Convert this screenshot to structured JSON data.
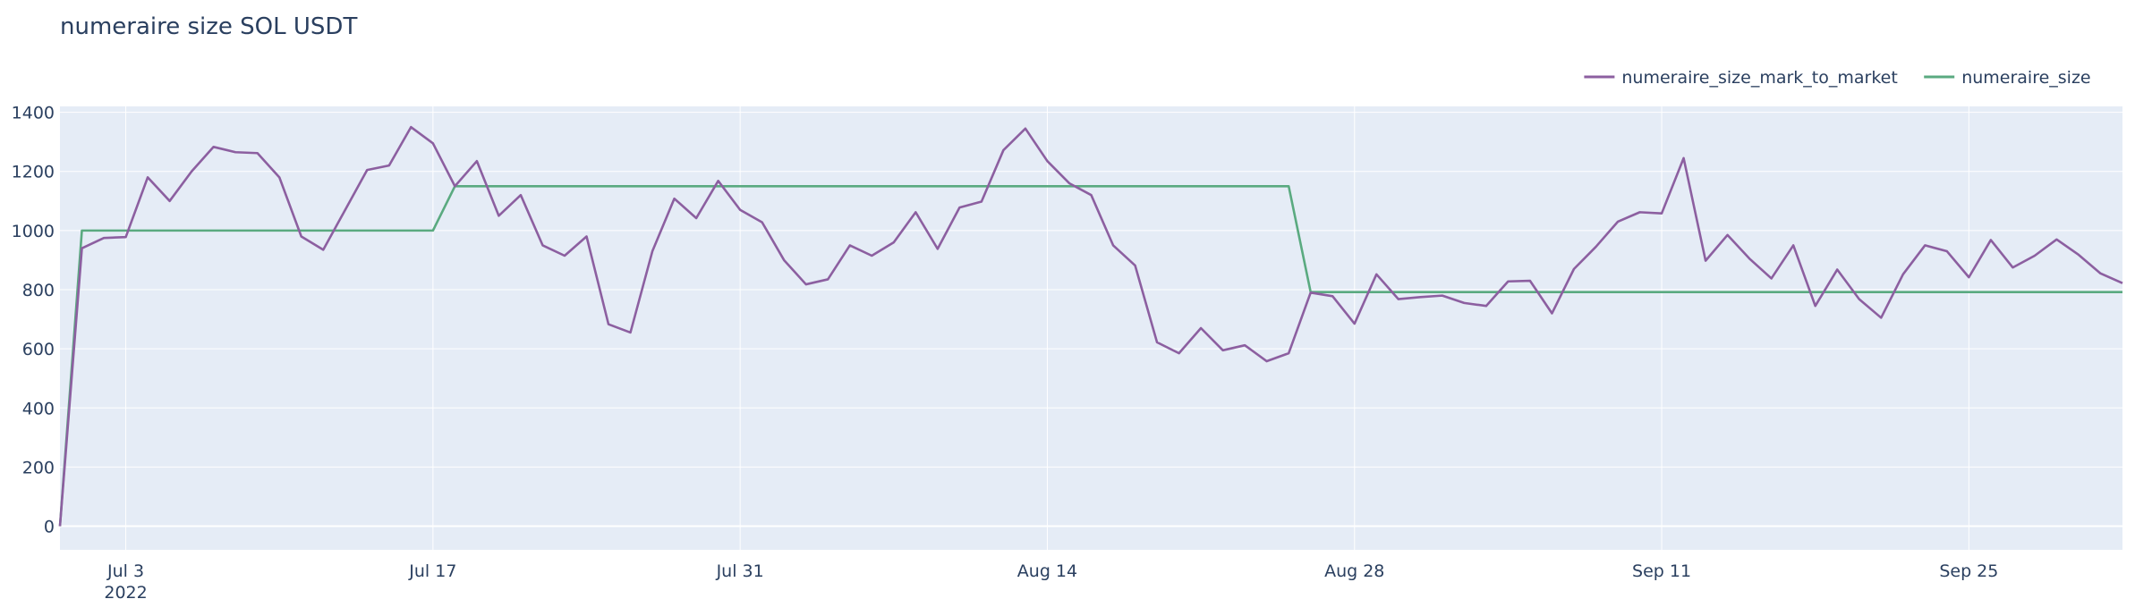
{
  "chart_data": {
    "type": "line",
    "title": "numeraire size SOL USDT",
    "xlabel": "",
    "ylabel": "",
    "x_start": "2022-06-30",
    "x_end": "2022-10-02",
    "x_ticks": [
      {
        "date": "2022-07-03",
        "label": "Jul 3",
        "sublabel": "2022"
      },
      {
        "date": "2022-07-17",
        "label": "Jul 17",
        "sublabel": ""
      },
      {
        "date": "2022-07-31",
        "label": "Jul 31",
        "sublabel": ""
      },
      {
        "date": "2022-08-14",
        "label": "Aug 14",
        "sublabel": ""
      },
      {
        "date": "2022-08-28",
        "label": "Aug 28",
        "sublabel": ""
      },
      {
        "date": "2022-09-11",
        "label": "Sep 11",
        "sublabel": ""
      },
      {
        "date": "2022-09-25",
        "label": "Sep 25",
        "sublabel": ""
      }
    ],
    "ylim": [
      -80,
      1420
    ],
    "y_ticks": [
      0,
      200,
      400,
      600,
      800,
      1000,
      1200,
      1400
    ],
    "grid": true,
    "legend_position": "top-right",
    "series": [
      {
        "name": "numeraire_size_mark_to_market",
        "color": "#8c5fa0",
        "points": [
          [
            "2022-06-30",
            0
          ],
          [
            "2022-07-01",
            940
          ],
          [
            "2022-07-02",
            975
          ],
          [
            "2022-07-03",
            978
          ],
          [
            "2022-07-04",
            1180
          ],
          [
            "2022-07-05",
            1100
          ],
          [
            "2022-07-06",
            1200
          ],
          [
            "2022-07-07",
            1283
          ],
          [
            "2022-07-08",
            1265
          ],
          [
            "2022-07-09",
            1262
          ],
          [
            "2022-07-10",
            1180
          ],
          [
            "2022-07-11",
            980
          ],
          [
            "2022-07-12",
            935
          ],
          [
            "2022-07-13",
            1070
          ],
          [
            "2022-07-14",
            1205
          ],
          [
            "2022-07-15",
            1220
          ],
          [
            "2022-07-16",
            1350
          ],
          [
            "2022-07-17",
            1295
          ],
          [
            "2022-07-18",
            1150
          ],
          [
            "2022-07-19",
            1235
          ],
          [
            "2022-07-20",
            1050
          ],
          [
            "2022-07-21",
            1120
          ],
          [
            "2022-07-22",
            950
          ],
          [
            "2022-07-23",
            915
          ],
          [
            "2022-07-24",
            980
          ],
          [
            "2022-07-25",
            683
          ],
          [
            "2022-07-26",
            655
          ],
          [
            "2022-07-27",
            930
          ],
          [
            "2022-07-28",
            1108
          ],
          [
            "2022-07-29",
            1042
          ],
          [
            "2022-07-30",
            1168
          ],
          [
            "2022-07-31",
            1070
          ],
          [
            "2022-08-01",
            1028
          ],
          [
            "2022-08-02",
            900
          ],
          [
            "2022-08-03",
            818
          ],
          [
            "2022-08-04",
            835
          ],
          [
            "2022-08-05",
            950
          ],
          [
            "2022-08-06",
            915
          ],
          [
            "2022-08-07",
            960
          ],
          [
            "2022-08-08",
            1062
          ],
          [
            "2022-08-09",
            938
          ],
          [
            "2022-08-10",
            1078
          ],
          [
            "2022-08-11",
            1098
          ],
          [
            "2022-08-12",
            1272
          ],
          [
            "2022-08-13",
            1345
          ],
          [
            "2022-08-14",
            1235
          ],
          [
            "2022-08-15",
            1160
          ],
          [
            "2022-08-16",
            1120
          ],
          [
            "2022-08-17",
            950
          ],
          [
            "2022-08-18",
            882
          ],
          [
            "2022-08-19",
            622
          ],
          [
            "2022-08-20",
            585
          ],
          [
            "2022-08-21",
            670
          ],
          [
            "2022-08-22",
            595
          ],
          [
            "2022-08-23",
            612
          ],
          [
            "2022-08-24",
            558
          ],
          [
            "2022-08-25",
            585
          ],
          [
            "2022-08-26",
            790
          ],
          [
            "2022-08-27",
            778
          ],
          [
            "2022-08-28",
            685
          ],
          [
            "2022-08-29",
            852
          ],
          [
            "2022-08-30",
            768
          ],
          [
            "2022-08-31",
            775
          ],
          [
            "2022-09-01",
            780
          ],
          [
            "2022-09-02",
            755
          ],
          [
            "2022-09-03",
            745
          ],
          [
            "2022-09-04",
            828
          ],
          [
            "2022-09-05",
            830
          ],
          [
            "2022-09-06",
            720
          ],
          [
            "2022-09-07",
            870
          ],
          [
            "2022-09-08",
            945
          ],
          [
            "2022-09-09",
            1030
          ],
          [
            "2022-09-10",
            1062
          ],
          [
            "2022-09-11",
            1058
          ],
          [
            "2022-09-12",
            1245
          ],
          [
            "2022-09-13",
            898
          ],
          [
            "2022-09-14",
            985
          ],
          [
            "2022-09-15",
            905
          ],
          [
            "2022-09-16",
            838
          ],
          [
            "2022-09-17",
            950
          ],
          [
            "2022-09-18",
            745
          ],
          [
            "2022-09-19",
            868
          ],
          [
            "2022-09-20",
            768
          ],
          [
            "2022-09-21",
            705
          ],
          [
            "2022-09-22",
            852
          ],
          [
            "2022-09-23",
            950
          ],
          [
            "2022-09-24",
            930
          ],
          [
            "2022-09-25",
            842
          ],
          [
            "2022-09-26",
            968
          ],
          [
            "2022-09-27",
            875
          ],
          [
            "2022-09-28",
            915
          ],
          [
            "2022-09-29",
            970
          ],
          [
            "2022-09-30",
            918
          ],
          [
            "2022-10-01",
            855
          ],
          [
            "2022-10-02",
            822
          ]
        ]
      },
      {
        "name": "numeraire_size",
        "color": "#5aaa80",
        "points": [
          [
            "2022-06-30",
            0
          ],
          [
            "2022-07-01",
            1000
          ],
          [
            "2022-07-17",
            1000
          ],
          [
            "2022-07-18",
            1150
          ],
          [
            "2022-08-25",
            1150
          ],
          [
            "2022-08-26",
            792
          ],
          [
            "2022-10-02",
            792
          ]
        ]
      }
    ]
  }
}
